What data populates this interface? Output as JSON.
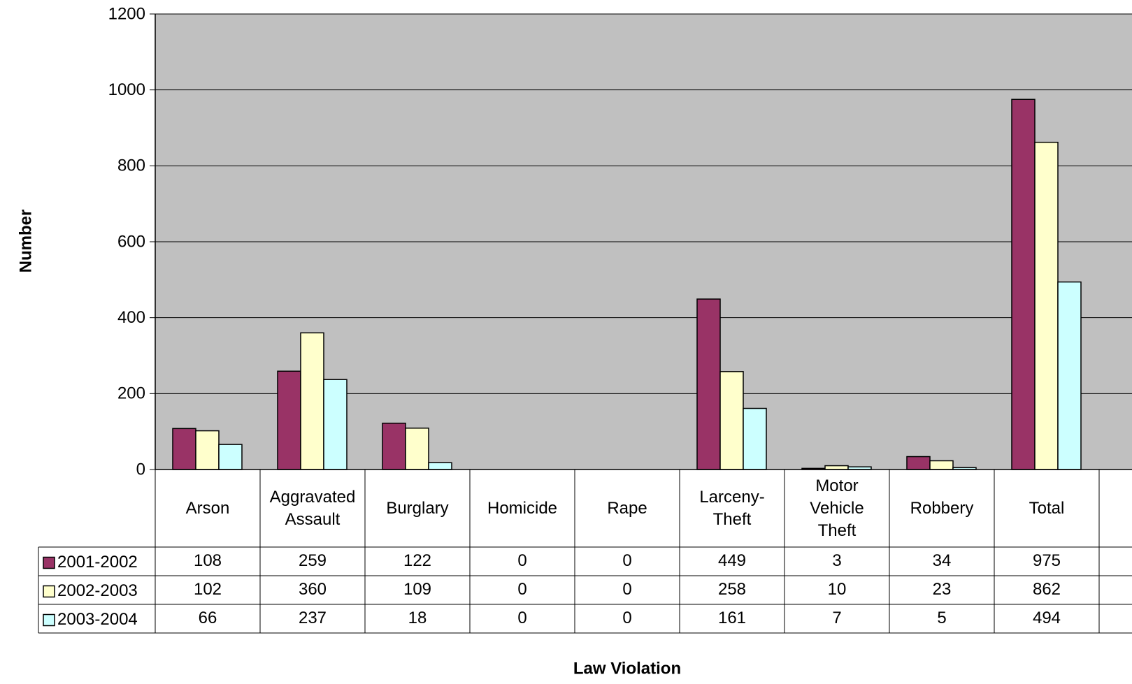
{
  "chart_data": {
    "type": "bar",
    "title": "",
    "xlabel": "Law Violation",
    "ylabel": "Number",
    "ylim": [
      0,
      1200
    ],
    "yticks": [
      0,
      200,
      400,
      600,
      800,
      1000,
      1200
    ],
    "grid": true,
    "legend": "data-table-left",
    "categories": [
      [
        "Arson"
      ],
      [
        "Aggravated",
        "Assault"
      ],
      [
        "Burglary"
      ],
      [
        "Homicide"
      ],
      [
        "Rape"
      ],
      [
        "Larceny-",
        "Theft"
      ],
      [
        "Motor",
        "Vehicle",
        "Theft"
      ],
      [
        "Robbery"
      ],
      [
        "Total"
      ]
    ],
    "series": [
      {
        "name": "2001-2002",
        "color": "#993366",
        "values": [
          108,
          259,
          122,
          0,
          0,
          449,
          3,
          34,
          975
        ]
      },
      {
        "name": "2002-2003",
        "color": "#FFFFCC",
        "values": [
          102,
          360,
          109,
          0,
          0,
          258,
          10,
          23,
          862
        ]
      },
      {
        "name": "2003-2004",
        "color": "#CCFFFF",
        "values": [
          66,
          237,
          18,
          0,
          0,
          161,
          7,
          5,
          494
        ]
      }
    ],
    "plot_background": "#C0C0C0"
  }
}
